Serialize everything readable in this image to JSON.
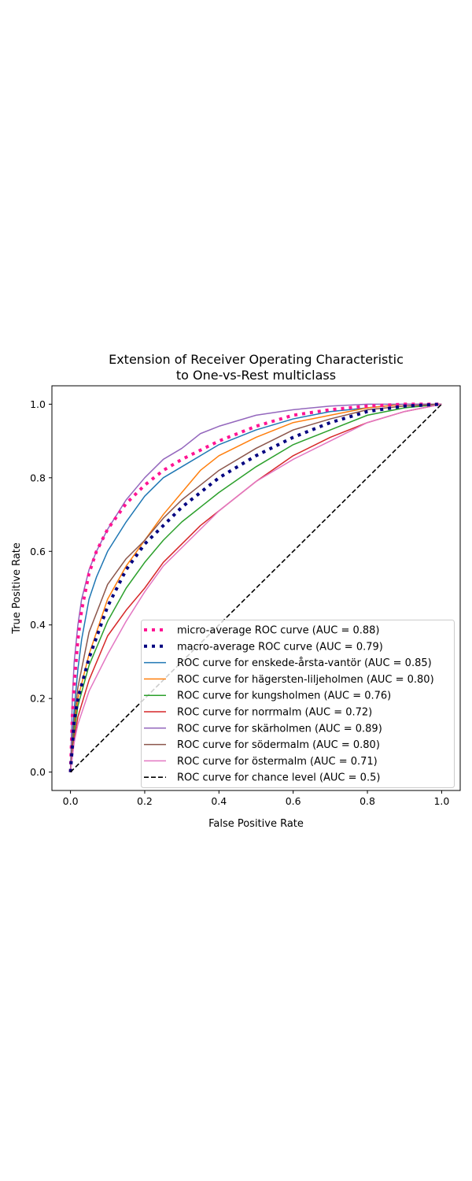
{
  "chart_data": {
    "type": "line",
    "title_line1": "Extension of Receiver Operating Characteristic",
    "title_line2": "to One-vs-Rest multiclass",
    "xlabel": "False Positive Rate",
    "ylabel": "True Positive Rate",
    "xlim": [
      -0.05,
      1.05
    ],
    "ylim": [
      -0.05,
      1.05
    ],
    "xticks": [
      "0.0",
      "0.2",
      "0.4",
      "0.6",
      "0.8",
      "1.0"
    ],
    "yticks": [
      "0.0",
      "0.2",
      "0.4",
      "0.6",
      "0.8",
      "1.0"
    ],
    "grid": false,
    "legend_position": "lower right",
    "series": [
      {
        "name": "micro-average ROC curve (AUC = 0.88)",
        "color": "#ff1493",
        "style": "dotted",
        "x": [
          0,
          0.005,
          0.01,
          0.02,
          0.03,
          0.05,
          0.07,
          0.1,
          0.15,
          0.2,
          0.25,
          0.3,
          0.4,
          0.5,
          0.6,
          0.7,
          0.8,
          0.9,
          1.0
        ],
        "y": [
          0,
          0.15,
          0.24,
          0.36,
          0.44,
          0.54,
          0.6,
          0.66,
          0.73,
          0.78,
          0.82,
          0.85,
          0.9,
          0.94,
          0.97,
          0.985,
          0.995,
          1.0,
          1.0
        ]
      },
      {
        "name": "macro-average ROC curve (AUC = 0.79)",
        "color": "#000080",
        "style": "dotted",
        "x": [
          0,
          0.01,
          0.02,
          0.05,
          0.1,
          0.15,
          0.2,
          0.25,
          0.3,
          0.4,
          0.5,
          0.6,
          0.7,
          0.8,
          0.9,
          1.0
        ],
        "y": [
          0,
          0.14,
          0.2,
          0.31,
          0.45,
          0.55,
          0.62,
          0.67,
          0.72,
          0.8,
          0.86,
          0.91,
          0.95,
          0.98,
          0.995,
          1.0
        ]
      },
      {
        "name": "ROC curve for enskede-årsta-vantör (AUC = 0.85)",
        "color": "#1f77b4",
        "style": "solid",
        "x": [
          0,
          0.005,
          0.01,
          0.02,
          0.03,
          0.05,
          0.07,
          0.1,
          0.15,
          0.2,
          0.25,
          0.3,
          0.35,
          0.4,
          0.5,
          0.6,
          0.7,
          0.8,
          0.9,
          1.0
        ],
        "y": [
          0,
          0.1,
          0.17,
          0.28,
          0.36,
          0.47,
          0.53,
          0.6,
          0.68,
          0.75,
          0.8,
          0.83,
          0.86,
          0.89,
          0.93,
          0.96,
          0.98,
          0.99,
          1.0,
          1.0
        ]
      },
      {
        "name": "ROC curve for hägersten-liljeholmen (AUC = 0.80)",
        "color": "#ff7f0e",
        "style": "solid",
        "x": [
          0,
          0.005,
          0.01,
          0.02,
          0.05,
          0.1,
          0.15,
          0.2,
          0.25,
          0.3,
          0.35,
          0.4,
          0.5,
          0.6,
          0.7,
          0.8,
          0.9,
          1.0
        ],
        "y": [
          0,
          0.07,
          0.12,
          0.2,
          0.32,
          0.47,
          0.56,
          0.63,
          0.7,
          0.76,
          0.82,
          0.86,
          0.91,
          0.95,
          0.97,
          0.99,
          1.0,
          1.0
        ]
      },
      {
        "name": "ROC curve for kungsholmen (AUC = 0.76)",
        "color": "#2ca02c",
        "style": "solid",
        "x": [
          0,
          0.005,
          0.01,
          0.02,
          0.05,
          0.1,
          0.15,
          0.2,
          0.25,
          0.3,
          0.35,
          0.4,
          0.5,
          0.6,
          0.7,
          0.8,
          0.9,
          1.0
        ],
        "y": [
          0,
          0.06,
          0.11,
          0.18,
          0.29,
          0.41,
          0.5,
          0.57,
          0.63,
          0.68,
          0.72,
          0.76,
          0.83,
          0.89,
          0.93,
          0.97,
          0.99,
          1.0
        ]
      },
      {
        "name": "ROC curve for norrmalm (AUC = 0.72)",
        "color": "#d62728",
        "style": "solid",
        "x": [
          0,
          0.005,
          0.01,
          0.02,
          0.05,
          0.1,
          0.15,
          0.2,
          0.25,
          0.3,
          0.35,
          0.4,
          0.5,
          0.6,
          0.7,
          0.8,
          0.9,
          1.0
        ],
        "y": [
          0,
          0.05,
          0.09,
          0.15,
          0.25,
          0.37,
          0.44,
          0.5,
          0.57,
          0.62,
          0.67,
          0.71,
          0.79,
          0.86,
          0.91,
          0.95,
          0.98,
          1.0
        ]
      },
      {
        "name": "ROC curve for skärholmen (AUC = 0.89)",
        "color": "#9467bd",
        "style": "solid",
        "x": [
          0,
          0.005,
          0.01,
          0.02,
          0.03,
          0.05,
          0.07,
          0.1,
          0.15,
          0.2,
          0.25,
          0.3,
          0.35,
          0.4,
          0.5,
          0.6,
          0.7,
          0.8,
          0.9,
          1.0
        ],
        "y": [
          0,
          0.2,
          0.3,
          0.4,
          0.47,
          0.55,
          0.6,
          0.66,
          0.74,
          0.8,
          0.85,
          0.88,
          0.92,
          0.94,
          0.97,
          0.985,
          0.995,
          1.0,
          1.0,
          1.0
        ]
      },
      {
        "name": "ROC curve for södermalm (AUC = 0.80)",
        "color": "#8c564b",
        "style": "solid",
        "x": [
          0,
          0.005,
          0.01,
          0.02,
          0.05,
          0.1,
          0.15,
          0.2,
          0.25,
          0.3,
          0.35,
          0.4,
          0.5,
          0.6,
          0.7,
          0.8,
          0.9,
          1.0
        ],
        "y": [
          0,
          0.08,
          0.14,
          0.23,
          0.38,
          0.51,
          0.58,
          0.63,
          0.69,
          0.74,
          0.78,
          0.82,
          0.88,
          0.93,
          0.96,
          0.985,
          0.995,
          1.0
        ]
      },
      {
        "name": "ROC curve for östermalm (AUC = 0.71)",
        "color": "#e377c2",
        "style": "solid",
        "x": [
          0,
          0.005,
          0.01,
          0.02,
          0.05,
          0.1,
          0.15,
          0.2,
          0.25,
          0.3,
          0.35,
          0.4,
          0.5,
          0.6,
          0.7,
          0.8,
          0.9,
          1.0
        ],
        "y": [
          0,
          0.04,
          0.08,
          0.13,
          0.22,
          0.32,
          0.41,
          0.49,
          0.56,
          0.61,
          0.66,
          0.71,
          0.79,
          0.85,
          0.9,
          0.95,
          0.98,
          1.0
        ]
      },
      {
        "name": "ROC curve for chance level (AUC = 0.5)",
        "color": "#000000",
        "style": "dashed",
        "x": [
          0,
          1
        ],
        "y": [
          0,
          1
        ]
      }
    ]
  }
}
